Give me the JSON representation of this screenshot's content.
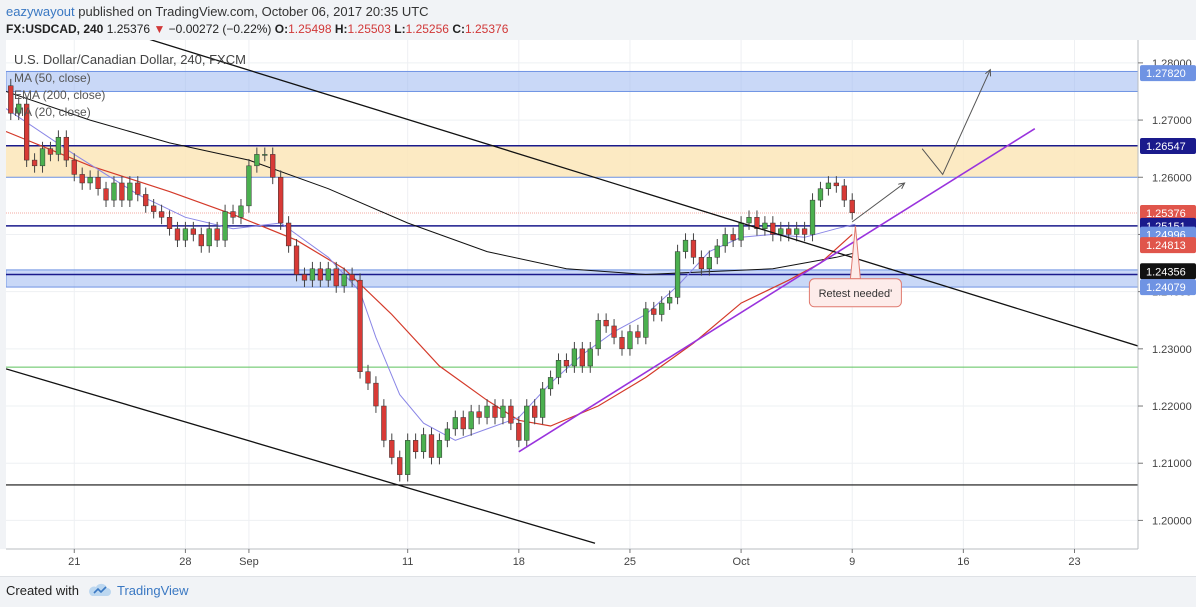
{
  "header": {
    "author": "eazywayout",
    "published_text": "published on TradingView.com, October 06, 2017 20:35 UTC",
    "symbol": "FX:USDCAD, 240",
    "last": "1.25376",
    "change": "−0.00272 (−0.22%)",
    "o_label": "O:",
    "o": "1.25498",
    "h_label": "H:",
    "h": "1.25503",
    "l_label": "L:",
    "l": "1.25256",
    "c_label": "C:",
    "c": "1.25376"
  },
  "legend": {
    "title": "U.S. Dollar/Canadian Dollar, 240, FXCM",
    "items": [
      "MA (50, close)",
      "EMA (200, close)",
      "MA (20, close)"
    ]
  },
  "footer": {
    "created_with": "Created with",
    "brand": "TradingView"
  },
  "colors": {
    "price_up": "#4bb04f",
    "price_down": "#d83a36",
    "ma50": "#111111",
    "ema200": "#d43a2a",
    "ma20": "#8a86e6",
    "zone_blue": "#9db8f0",
    "zone_orange": "#fbe6b8",
    "level_navy": "#1a1a8c",
    "trend_purple": "#9933dd"
  },
  "chart_data": {
    "type": "candlestick",
    "title": "U.S. Dollar/Canadian Dollar, 240, FXCM",
    "ylim": [
      1.195,
      1.284
    ],
    "y_ticks": [
      "1.28000",
      "1.27000",
      "1.26000",
      "1.25000",
      "1.24000",
      "1.23000",
      "1.22000",
      "1.21000",
      "1.20000"
    ],
    "y_tick_values": [
      1.28,
      1.27,
      1.26,
      1.25,
      1.24,
      1.23,
      1.22,
      1.21,
      1.2
    ],
    "x_ticks": [
      "21",
      "28",
      "Sep",
      "11",
      "18",
      "25",
      "Oct",
      "9",
      "16",
      "23"
    ],
    "x_tick_days": [
      4,
      11,
      15,
      25,
      32,
      39,
      46,
      53,
      60,
      67
    ],
    "x_range_days": [
      -0.3,
      71
    ],
    "price_labels": [
      {
        "text": "1.27820",
        "value": 1.2782,
        "style": "blue"
      },
      {
        "text": "1.26547",
        "value": 1.26547,
        "style": "navy"
      },
      {
        "text": "1.25376",
        "value": 1.25376,
        "style": "red"
      },
      {
        "text": "24:03",
        "value": 1.2515,
        "style": "red-small"
      },
      {
        "text": "1.25151",
        "value": 1.25151,
        "style": "navy"
      },
      {
        "text": "1.24996",
        "value": 1.24996,
        "style": "blue"
      },
      {
        "text": "1.24813",
        "value": 1.24813,
        "style": "red"
      },
      {
        "text": "1.24356",
        "value": 1.24356,
        "style": "black"
      },
      {
        "text": "1.24079",
        "value": 1.24079,
        "style": "blue"
      }
    ],
    "zones": [
      {
        "from": 1.275,
        "to": 1.2785,
        "color": "blue"
      },
      {
        "from": 1.26,
        "to": 1.2655,
        "color": "orange"
      },
      {
        "from": 1.2408,
        "to": 1.2438,
        "color": "blue"
      }
    ],
    "hlines": [
      {
        "value": 1.2655,
        "color": "navy",
        "width": 1.5
      },
      {
        "value": 1.26,
        "color": "blue",
        "width": 1
      },
      {
        "value": 1.2515,
        "color": "navy",
        "width": 1.5
      },
      {
        "value": 1.243,
        "color": "navy",
        "width": 1.5
      },
      {
        "value": 1.2268,
        "color": "green",
        "width": 1
      },
      {
        "value": 1.2062,
        "color": "black",
        "width": 1.2
      }
    ],
    "trendlines": [
      {
        "p1": [
          -1,
          1.2925
        ],
        "p2": [
          71,
          1.2305
        ],
        "color": "black"
      },
      {
        "p1": [
          -0.3,
          1.2265
        ],
        "p2": [
          36.8,
          1.196
        ],
        "color": "black"
      },
      {
        "p1": [
          32,
          1.212
        ],
        "p2": [
          64.5,
          1.2685
        ],
        "color": "purple"
      }
    ],
    "projection_arrows": [
      {
        "points": [
          [
            53,
            1.2522
          ],
          [
            56.3,
            1.259
          ]
        ]
      },
      {
        "points": [
          [
            57.4,
            1.265
          ],
          [
            58.7,
            1.2605
          ],
          [
            61.7,
            1.2788
          ]
        ]
      }
    ],
    "annotation": {
      "text": "Retest needed'",
      "target": [
        53.2,
        1.2515
      ],
      "box_center": [
        53.2,
        1.2398
      ]
    },
    "ma20": [
      [
        -0.3,
        1.272
      ],
      [
        4,
        1.264
      ],
      [
        8,
        1.257
      ],
      [
        11,
        1.253
      ],
      [
        14,
        1.251
      ],
      [
        17,
        1.252
      ],
      [
        20,
        1.246
      ],
      [
        22,
        1.24
      ],
      [
        23,
        1.232
      ],
      [
        24.5,
        1.222
      ],
      [
        26,
        1.217
      ],
      [
        28,
        1.214
      ],
      [
        30,
        1.216
      ],
      [
        32,
        1.218
      ],
      [
        34,
        1.224
      ],
      [
        36,
        1.229
      ],
      [
        38,
        1.233
      ],
      [
        40,
        1.236
      ],
      [
        42,
        1.241
      ],
      [
        44,
        1.247
      ],
      [
        46,
        1.2495
      ],
      [
        48,
        1.25
      ],
      [
        50,
        1.2495
      ],
      [
        52,
        1.251
      ],
      [
        53.2,
        1.2518
      ]
    ],
    "ema200": [
      [
        -0.3,
        1.268
      ],
      [
        5,
        1.262
      ],
      [
        10,
        1.2575
      ],
      [
        14,
        1.2535
      ],
      [
        18,
        1.249
      ],
      [
        21,
        1.244
      ],
      [
        24,
        1.236
      ],
      [
        27,
        1.227
      ],
      [
        30,
        1.221
      ],
      [
        32,
        1.2175
      ],
      [
        34,
        1.2165
      ],
      [
        37,
        1.22
      ],
      [
        40,
        1.225
      ],
      [
        43,
        1.231
      ],
      [
        46,
        1.238
      ],
      [
        49,
        1.242
      ],
      [
        51,
        1.245
      ],
      [
        53,
        1.25
      ]
    ],
    "ma50": [
      [
        -0.3,
        1.275
      ],
      [
        5,
        1.27
      ],
      [
        10,
        1.266
      ],
      [
        15,
        1.263
      ],
      [
        20,
        1.258
      ],
      [
        25,
        1.252
      ],
      [
        30,
        1.247
      ],
      [
        35,
        1.244
      ],
      [
        40,
        1.243
      ],
      [
        44,
        1.2435
      ],
      [
        48,
        1.244
      ],
      [
        52,
        1.246
      ],
      [
        53.2,
        1.2468
      ]
    ],
    "candles": [
      [
        0,
        1.276,
        1.2712
      ],
      [
        0.5,
        1.2712,
        1.2728
      ],
      [
        1,
        1.2728,
        1.263
      ],
      [
        1.5,
        1.263,
        1.262
      ],
      [
        2,
        1.262,
        1.265
      ],
      [
        2.5,
        1.265,
        1.264
      ],
      [
        3,
        1.264,
        1.267
      ],
      [
        3.5,
        1.267,
        1.263
      ],
      [
        4,
        1.263,
        1.2605
      ],
      [
        4.5,
        1.2605,
        1.259
      ],
      [
        5,
        1.259,
        1.26
      ],
      [
        5.5,
        1.26,
        1.258
      ],
      [
        6,
        1.258,
        1.256
      ],
      [
        6.5,
        1.256,
        1.259
      ],
      [
        7,
        1.259,
        1.256
      ],
      [
        7.5,
        1.256,
        1.259
      ],
      [
        8,
        1.259,
        1.257
      ],
      [
        8.5,
        1.257,
        1.255
      ],
      [
        9,
        1.255,
        1.254
      ],
      [
        9.5,
        1.254,
        1.253
      ],
      [
        10,
        1.253,
        1.251
      ],
      [
        10.5,
        1.251,
        1.249
      ],
      [
        11,
        1.249,
        1.251
      ],
      [
        11.5,
        1.251,
        1.25
      ],
      [
        12,
        1.25,
        1.248
      ],
      [
        12.5,
        1.248,
        1.251
      ],
      [
        13,
        1.251,
        1.249
      ],
      [
        13.5,
        1.249,
        1.254
      ],
      [
        14,
        1.254,
        1.253
      ],
      [
        14.5,
        1.253,
        1.255
      ],
      [
        15,
        1.255,
        1.262
      ],
      [
        15.5,
        1.262,
        1.264
      ],
      [
        16,
        1.264,
        1.264
      ],
      [
        16.5,
        1.264,
        1.26
      ],
      [
        17,
        1.26,
        1.252
      ],
      [
        17.5,
        1.252,
        1.248
      ],
      [
        18,
        1.248,
        1.243
      ],
      [
        18.5,
        1.243,
        1.242
      ],
      [
        19,
        1.242,
        1.244
      ],
      [
        19.5,
        1.244,
        1.242
      ],
      [
        20,
        1.242,
        1.244
      ],
      [
        20.5,
        1.244,
        1.241
      ],
      [
        21,
        1.241,
        1.243
      ],
      [
        21.5,
        1.243,
        1.242
      ],
      [
        22,
        1.242,
        1.226
      ],
      [
        22.5,
        1.226,
        1.224
      ],
      [
        23,
        1.224,
        1.22
      ],
      [
        23.5,
        1.22,
        1.214
      ],
      [
        24,
        1.214,
        1.211
      ],
      [
        24.5,
        1.211,
        1.208
      ],
      [
        25,
        1.208,
        1.214
      ],
      [
        25.5,
        1.214,
        1.212
      ],
      [
        26,
        1.212,
        1.215
      ],
      [
        26.5,
        1.215,
        1.211
      ],
      [
        27,
        1.211,
        1.214
      ],
      [
        27.5,
        1.214,
        1.216
      ],
      [
        28,
        1.216,
        1.218
      ],
      [
        28.5,
        1.218,
        1.216
      ],
      [
        29,
        1.216,
        1.219
      ],
      [
        29.5,
        1.219,
        1.218
      ],
      [
        30,
        1.218,
        1.22
      ],
      [
        30.5,
        1.22,
        1.218
      ],
      [
        31,
        1.218,
        1.22
      ],
      [
        31.5,
        1.22,
        1.217
      ],
      [
        32,
        1.217,
        1.214
      ],
      [
        32.5,
        1.214,
        1.22
      ],
      [
        33,
        1.22,
        1.218
      ],
      [
        33.5,
        1.218,
        1.223
      ],
      [
        34,
        1.223,
        1.225
      ],
      [
        34.5,
        1.225,
        1.228
      ],
      [
        35,
        1.228,
        1.227
      ],
      [
        35.5,
        1.227,
        1.23
      ],
      [
        36,
        1.23,
        1.227
      ],
      [
        36.5,
        1.227,
        1.23
      ],
      [
        37,
        1.23,
        1.235
      ],
      [
        37.5,
        1.235,
        1.234
      ],
      [
        38,
        1.234,
        1.232
      ],
      [
        38.5,
        1.232,
        1.23
      ],
      [
        39,
        1.23,
        1.233
      ],
      [
        39.5,
        1.233,
        1.232
      ],
      [
        40,
        1.232,
        1.237
      ],
      [
        40.5,
        1.237,
        1.236
      ],
      [
        41,
        1.236,
        1.238
      ],
      [
        41.5,
        1.238,
        1.239
      ],
      [
        42,
        1.239,
        1.247
      ],
      [
        42.5,
        1.247,
        1.249
      ],
      [
        43,
        1.249,
        1.246
      ],
      [
        43.5,
        1.246,
        1.244
      ],
      [
        44,
        1.244,
        1.246
      ],
      [
        44.5,
        1.246,
        1.248
      ],
      [
        45,
        1.248,
        1.25
      ],
      [
        45.5,
        1.25,
        1.249
      ],
      [
        46,
        1.249,
        1.252
      ],
      [
        46.5,
        1.252,
        1.253
      ],
      [
        47,
        1.253,
        1.251
      ],
      [
        47.5,
        1.251,
        1.252
      ],
      [
        48,
        1.252,
        1.25
      ],
      [
        48.5,
        1.25,
        1.251
      ],
      [
        49,
        1.251,
        1.25
      ],
      [
        49.5,
        1.25,
        1.251
      ],
      [
        50,
        1.251,
        1.25
      ],
      [
        50.5,
        1.25,
        1.256
      ],
      [
        51,
        1.256,
        1.258
      ],
      [
        51.5,
        1.258,
        1.259
      ],
      [
        52,
        1.259,
        1.2585
      ],
      [
        52.5,
        1.2585,
        1.256
      ],
      [
        53,
        1.256,
        1.2538
      ]
    ]
  }
}
